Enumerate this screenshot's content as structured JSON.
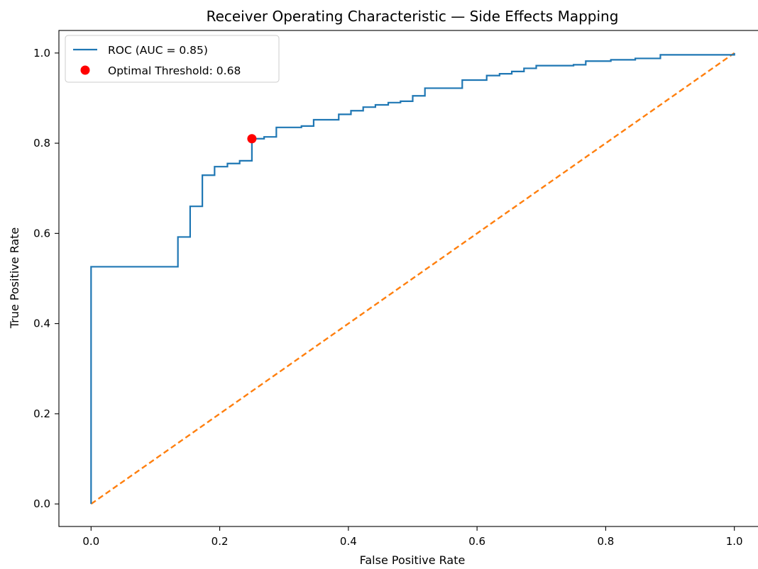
{
  "chart_data": {
    "type": "line",
    "title": "Receiver Operating Characteristic — Side Effects Mapping",
    "xlabel": "False Positive Rate",
    "ylabel": "True Positive Rate",
    "xlim": [
      -0.05,
      1.05
    ],
    "ylim": [
      -0.05,
      1.05
    ],
    "xticks": [
      0.0,
      0.2,
      0.4,
      0.6,
      0.8,
      1.0
    ],
    "yticks": [
      0.0,
      0.2,
      0.4,
      0.6,
      0.8,
      1.0
    ],
    "tick_labels": [
      "0.0",
      "0.2",
      "0.4",
      "0.6",
      "0.8",
      "1.0"
    ],
    "grid": false,
    "legend_position": "top-left",
    "series": [
      {
        "name": "ROC (AUC = 0.85)",
        "kind": "step",
        "color": "#1f77b4",
        "points": [
          [
            0.0,
            0.0
          ],
          [
            0.0,
            0.526
          ],
          [
            0.135,
            0.526
          ],
          [
            0.135,
            0.592
          ],
          [
            0.154,
            0.592
          ],
          [
            0.154,
            0.66
          ],
          [
            0.173,
            0.66
          ],
          [
            0.173,
            0.729
          ],
          [
            0.192,
            0.729
          ],
          [
            0.192,
            0.748
          ],
          [
            0.212,
            0.748
          ],
          [
            0.212,
            0.755
          ],
          [
            0.231,
            0.755
          ],
          [
            0.231,
            0.761
          ],
          [
            0.25,
            0.761
          ],
          [
            0.25,
            0.81
          ],
          [
            0.269,
            0.81
          ],
          [
            0.269,
            0.814
          ],
          [
            0.288,
            0.814
          ],
          [
            0.288,
            0.835
          ],
          [
            0.327,
            0.835
          ],
          [
            0.327,
            0.838
          ],
          [
            0.346,
            0.838
          ],
          [
            0.346,
            0.852
          ],
          [
            0.385,
            0.852
          ],
          [
            0.385,
            0.864
          ],
          [
            0.404,
            0.864
          ],
          [
            0.404,
            0.872
          ],
          [
            0.423,
            0.872
          ],
          [
            0.423,
            0.88
          ],
          [
            0.442,
            0.88
          ],
          [
            0.442,
            0.885
          ],
          [
            0.462,
            0.885
          ],
          [
            0.462,
            0.89
          ],
          [
            0.481,
            0.89
          ],
          [
            0.481,
            0.893
          ],
          [
            0.5,
            0.893
          ],
          [
            0.5,
            0.905
          ],
          [
            0.519,
            0.905
          ],
          [
            0.519,
            0.922
          ],
          [
            0.577,
            0.922
          ],
          [
            0.577,
            0.94
          ],
          [
            0.615,
            0.94
          ],
          [
            0.615,
            0.95
          ],
          [
            0.635,
            0.95
          ],
          [
            0.635,
            0.954
          ],
          [
            0.654,
            0.954
          ],
          [
            0.654,
            0.959
          ],
          [
            0.673,
            0.959
          ],
          [
            0.673,
            0.966
          ],
          [
            0.692,
            0.966
          ],
          [
            0.692,
            0.972
          ],
          [
            0.75,
            0.972
          ],
          [
            0.75,
            0.974
          ],
          [
            0.769,
            0.974
          ],
          [
            0.769,
            0.982
          ],
          [
            0.808,
            0.982
          ],
          [
            0.808,
            0.985
          ],
          [
            0.846,
            0.985
          ],
          [
            0.846,
            0.988
          ],
          [
            0.885,
            0.988
          ],
          [
            0.885,
            0.996
          ],
          [
            1.0,
            0.996
          ],
          [
            1.0,
            1.0
          ]
        ]
      },
      {
        "name": "",
        "kind": "dashed",
        "color": "#ff7f0e",
        "points": [
          [
            0.0,
            0.0
          ],
          [
            1.0,
            1.0
          ]
        ]
      }
    ],
    "markers": [
      {
        "name": "Optimal Threshold: 0.68",
        "x": 0.25,
        "y": 0.81,
        "color": "#ff0000"
      }
    ]
  }
}
